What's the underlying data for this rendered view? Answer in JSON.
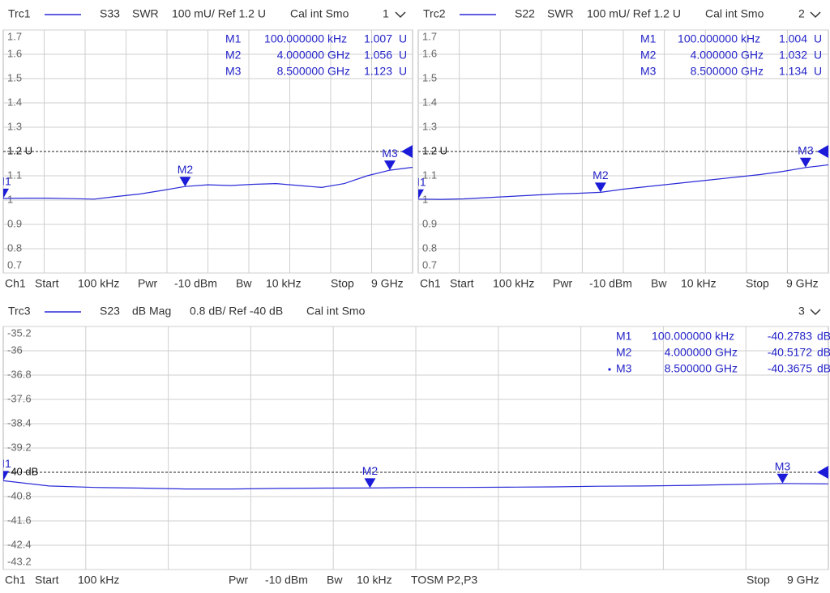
{
  "chart_data": [
    {
      "type": "line",
      "trace": "Trc1",
      "parameter": "S33",
      "format": "SWR",
      "scale": "100 mU/ Ref 1.2 U",
      "cal": "Cal int Smo",
      "window": "1",
      "x": [
        0.0001,
        0.5,
        1,
        1.5,
        2,
        2.5,
        3,
        3.5,
        4,
        4.5,
        5,
        5.5,
        6,
        6.5,
        7,
        7.5,
        8,
        8.5,
        9
      ],
      "xlim": [
        0.0001,
        9
      ],
      "series": [
        {
          "name": "Trc1",
          "color": "#2a2ad8",
          "values": [
            1.007,
            1.008,
            1.008,
            1.006,
            1.004,
            1.015,
            1.025,
            1.04,
            1.056,
            1.063,
            1.06,
            1.065,
            1.068,
            1.06,
            1.052,
            1.068,
            1.1,
            1.123,
            1.135
          ]
        }
      ],
      "ylim": [
        0.7,
        1.7
      ],
      "yticks": [
        1.7,
        1.6,
        1.5,
        1.4,
        1.3,
        {
          "value": 1.2,
          "label": "1.2 U"
        },
        1.1,
        1,
        0.9,
        0.8,
        0.7
      ],
      "ref": 1.2,
      "grid": true,
      "markers": [
        {
          "name": "M1",
          "freq": {
            "value": 0.0001,
            "label": "100.000000"
          },
          "freq_unit": "kHz",
          "value": 1.007,
          "value_unit": "U"
        },
        {
          "name": "M2",
          "freq": {
            "value": 4,
            "label": "4.000000"
          },
          "freq_unit": "GHz",
          "value": 1.056,
          "value_unit": "U"
        },
        {
          "name": "M3",
          "freq": {
            "value": 8.5,
            "label": "8.500000"
          },
          "freq_unit": "GHz",
          "value": 1.123,
          "value_unit": "U"
        }
      ],
      "footer": [
        "Ch1",
        "Start",
        "100 kHz",
        "Pwr",
        "-10 dBm",
        "Bw",
        "10 kHz",
        "Stop",
        "9 GHz"
      ]
    },
    {
      "type": "line",
      "trace": "Trc2",
      "parameter": "S22",
      "format": "SWR",
      "scale": "100 mU/ Ref 1.2 U",
      "cal": "Cal int Smo",
      "window": "2",
      "x": [
        0.0001,
        0.5,
        1,
        1.5,
        2,
        2.5,
        3,
        3.5,
        4,
        4.5,
        5,
        5.5,
        6,
        6.5,
        7,
        7.5,
        8,
        8.5,
        9
      ],
      "xlim": [
        0.0001,
        9
      ],
      "series": [
        {
          "name": "Trc2",
          "color": "#2a2ad8",
          "values": [
            1.004,
            1.003,
            1.005,
            1.01,
            1.015,
            1.02,
            1.025,
            1.028,
            1.032,
            1.045,
            1.055,
            1.065,
            1.075,
            1.085,
            1.095,
            1.105,
            1.118,
            1.134,
            1.145
          ]
        }
      ],
      "ylim": [
        0.7,
        1.7
      ],
      "yticks": [
        1.7,
        1.6,
        1.5,
        1.4,
        1.3,
        {
          "value": 1.2,
          "label": "1.2 U"
        },
        1.1,
        1,
        0.9,
        0.8,
        0.7
      ],
      "ref": 1.2,
      "grid": true,
      "markers": [
        {
          "name": "M1",
          "freq": {
            "value": 0.0001,
            "label": "100.000000"
          },
          "freq_unit": "kHz",
          "value": 1.004,
          "value_unit": "U"
        },
        {
          "name": "M2",
          "freq": {
            "value": 4,
            "label": "4.000000"
          },
          "freq_unit": "GHz",
          "value": 1.032,
          "value_unit": "U"
        },
        {
          "name": "M3",
          "freq": {
            "value": 8.5,
            "label": "8.500000"
          },
          "freq_unit": "GHz",
          "value": 1.134,
          "value_unit": "U"
        }
      ],
      "footer": [
        "Ch1",
        "Start",
        "100 kHz",
        "Pwr",
        "-10 dBm",
        "Bw",
        "10 kHz",
        "Stop",
        "9 GHz"
      ]
    },
    {
      "type": "line",
      "trace": "Trc3",
      "parameter": "S23",
      "format": "dB Mag",
      "scale": "0.8 dB/ Ref -40 dB",
      "cal": "Cal int Smo",
      "window": "3",
      "x": [
        0.0001,
        0.5,
        1,
        1.5,
        2,
        2.5,
        3,
        3.5,
        4,
        4.5,
        5,
        5.5,
        6,
        6.5,
        7,
        7.5,
        8,
        8.5,
        9
      ],
      "xlim": [
        0.0001,
        9
      ],
      "series": [
        {
          "name": "Trc3",
          "color": "#2a2ad8",
          "values": [
            -40.2783,
            -40.45,
            -40.5,
            -40.52,
            -40.55,
            -40.55,
            -40.53,
            -40.52,
            -40.5172,
            -40.5,
            -40.5,
            -40.49,
            -40.48,
            -40.46,
            -40.45,
            -40.43,
            -40.4,
            -40.3675,
            -40.38
          ]
        }
      ],
      "ylim": [
        -43.2,
        -35.2
      ],
      "yticks": [
        -35.2,
        -36,
        -36.8,
        -37.6,
        -38.4,
        -39.2,
        {
          "value": -40,
          "label": "-40 dB"
        },
        -40.8,
        -41.6,
        -42.4,
        -43.2
      ],
      "ref": -40,
      "grid": true,
      "markers": [
        {
          "name": "M1",
          "freq": {
            "value": 0.0001,
            "label": "100.000000"
          },
          "freq_unit": "kHz",
          "value": -40.2783,
          "value_unit": "dB"
        },
        {
          "name": "M2",
          "freq": {
            "value": 4,
            "label": "4.000000"
          },
          "freq_unit": "GHz",
          "value": -40.5172,
          "value_unit": "dB"
        },
        {
          "name": "M3",
          "freq": {
            "value": 8.5,
            "label": "8.500000"
          },
          "freq_unit": "GHz",
          "value": -40.3675,
          "value_unit": "dB"
        }
      ],
      "footer": [
        "Ch1",
        "Start",
        "100 kHz",
        "Pwr",
        "-10 dBm",
        "Bw",
        "10 kHz",
        "TOSM P2,P3",
        "Stop",
        "9 GHz"
      ]
    }
  ]
}
